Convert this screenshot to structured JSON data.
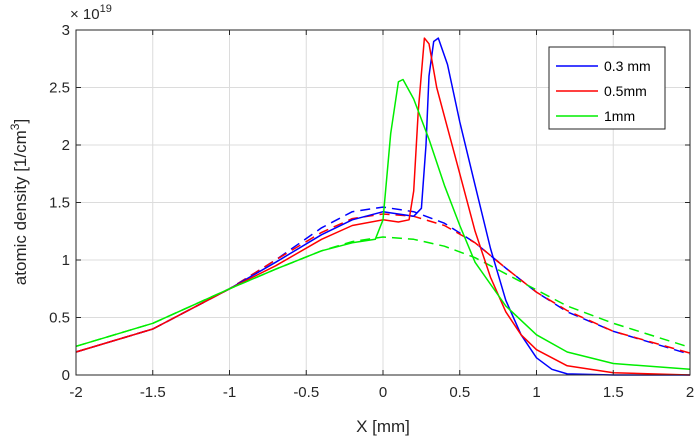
{
  "chart_data": {
    "type": "line",
    "xlabel": "X [mm]",
    "ylabel_main": "atomic density [1/cm",
    "ylabel_sup": "3",
    "ylabel_end": "]",
    "exponent_base": "× 10",
    "exponent_power": "19",
    "xlim": [
      -2,
      2
    ],
    "ylim": [
      0,
      3
    ],
    "xticks": [
      -2,
      -1.5,
      -1,
      -0.5,
      0,
      0.5,
      1,
      1.5,
      2
    ],
    "xtick_labels": [
      "-2",
      "-1.5",
      "-1",
      "-0.5",
      "0",
      "0.5",
      "1",
      "1.5",
      "2"
    ],
    "yticks": [
      0,
      0.5,
      1,
      1.5,
      2,
      2.5,
      3
    ],
    "ytick_labels": [
      "0",
      "0.5",
      "1",
      "1.5",
      "2",
      "2.5",
      "3"
    ],
    "grid": true,
    "legend_position": "top-right",
    "series": [
      {
        "name": "0.3 mm",
        "color": "#0000ff",
        "style": "solid",
        "x": [
          -2,
          -1.5,
          -1,
          -0.7,
          -0.4,
          -0.2,
          0,
          0.1,
          0.2,
          0.25,
          0.28,
          0.3,
          0.33,
          0.36,
          0.42,
          0.5,
          0.6,
          0.7,
          0.8,
          0.9,
          1.0,
          1.1,
          1.2,
          1.5,
          2
        ],
        "y": [
          0.2,
          0.4,
          0.75,
          0.98,
          1.22,
          1.35,
          1.42,
          1.4,
          1.38,
          1.45,
          2.0,
          2.6,
          2.9,
          2.93,
          2.7,
          2.2,
          1.65,
          1.1,
          0.65,
          0.35,
          0.15,
          0.05,
          0.01,
          0.0,
          0.0
        ]
      },
      {
        "name": "0.5mm",
        "color": "#ff0000",
        "style": "solid",
        "x": [
          -2,
          -1.5,
          -1,
          -0.7,
          -0.4,
          -0.2,
          0,
          0.1,
          0.17,
          0.2,
          0.23,
          0.27,
          0.3,
          0.35,
          0.4,
          0.5,
          0.6,
          0.7,
          0.8,
          0.9,
          1.0,
          1.2,
          1.5,
          2
        ],
        "y": [
          0.2,
          0.4,
          0.75,
          0.95,
          1.18,
          1.3,
          1.35,
          1.33,
          1.35,
          1.6,
          2.3,
          2.93,
          2.88,
          2.5,
          2.25,
          1.75,
          1.25,
          0.85,
          0.55,
          0.35,
          0.22,
          0.08,
          0.02,
          0.0
        ]
      },
      {
        "name": "1mm",
        "color": "#00ee00",
        "style": "solid",
        "x": [
          -2,
          -1.5,
          -1,
          -0.7,
          -0.4,
          -0.2,
          -0.05,
          0,
          0.05,
          0.1,
          0.13,
          0.2,
          0.3,
          0.4,
          0.5,
          0.6,
          0.8,
          1.0,
          1.2,
          1.5,
          2
        ],
        "y": [
          0.25,
          0.45,
          0.75,
          0.92,
          1.08,
          1.15,
          1.18,
          1.35,
          2.1,
          2.55,
          2.57,
          2.4,
          2.05,
          1.65,
          1.3,
          0.98,
          0.6,
          0.35,
          0.2,
          0.1,
          0.05
        ]
      },
      {
        "name": "",
        "color": "#0000ff",
        "style": "dashed",
        "x": [
          -2,
          -1.5,
          -1,
          -0.7,
          -0.4,
          -0.2,
          0,
          0.2,
          0.4,
          0.6,
          0.8,
          1.0,
          1.2,
          1.5,
          2
        ],
        "y": [
          0.2,
          0.4,
          0.75,
          1.0,
          1.28,
          1.42,
          1.46,
          1.42,
          1.32,
          1.15,
          0.93,
          0.72,
          0.55,
          0.38,
          0.18
        ]
      },
      {
        "name": "",
        "color": "#ff0000",
        "style": "dashed",
        "x": [
          -2,
          -1.5,
          -1,
          -0.7,
          -0.4,
          -0.2,
          0,
          0.2,
          0.4,
          0.6,
          0.8,
          1.0,
          1.2,
          1.5,
          2
        ],
        "y": [
          0.2,
          0.4,
          0.75,
          1.0,
          1.24,
          1.36,
          1.4,
          1.38,
          1.3,
          1.15,
          0.93,
          0.72,
          0.56,
          0.38,
          0.19
        ]
      },
      {
        "name": "",
        "color": "#00ee00",
        "style": "dashed",
        "x": [
          -2,
          -1.5,
          -1,
          -0.7,
          -0.4,
          -0.2,
          0,
          0.2,
          0.4,
          0.6,
          0.8,
          1.0,
          1.2,
          1.5,
          2
        ],
        "y": [
          0.25,
          0.45,
          0.75,
          0.92,
          1.08,
          1.16,
          1.2,
          1.18,
          1.12,
          1.02,
          0.88,
          0.74,
          0.6,
          0.45,
          0.24
        ]
      }
    ]
  }
}
